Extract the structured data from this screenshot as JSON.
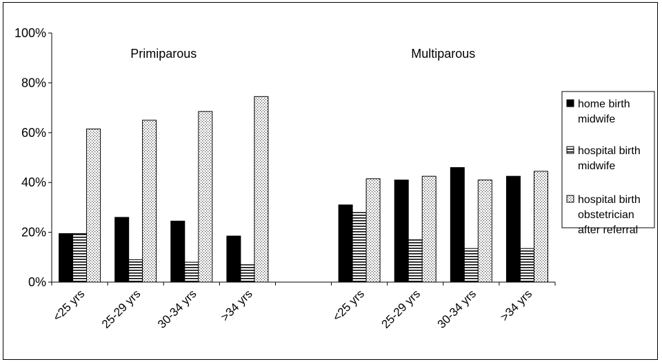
{
  "chart_data": {
    "type": "bar",
    "groups": [
      {
        "label": "Primiparous",
        "categories": [
          "<25 yrs",
          "25-29 yrs",
          "30-34 yrs",
          ">34 yrs"
        ]
      },
      {
        "label": "Multiparous",
        "categories": [
          "<25 yrs",
          "25-29 yrs",
          "30-34 yrs",
          ">34 yrs"
        ]
      }
    ],
    "series": [
      {
        "name_lines": [
          "home birth",
          "midwife"
        ],
        "pattern": "solid",
        "values": [
          [
            19.5,
            26,
            24.5,
            18.5
          ],
          [
            31,
            41,
            46,
            42.5
          ]
        ]
      },
      {
        "name_lines": [
          "hospital birth",
          "midwife"
        ],
        "pattern": "horizontal-lines",
        "values": [
          [
            19.5,
            9,
            8,
            7
          ],
          [
            28,
            17,
            13.5,
            13.5
          ]
        ]
      },
      {
        "name_lines": [
          "hospital birth",
          "obstetrician",
          "after referral"
        ],
        "pattern": "dots",
        "values": [
          [
            61.5,
            65,
            68.5,
            74.5
          ],
          [
            41.5,
            42.5,
            41,
            44.5
          ]
        ]
      }
    ],
    "ylim": [
      0,
      100
    ],
    "yticks": [
      "0%",
      "20%",
      "40%",
      "60%",
      "80%",
      "100%"
    ],
    "grid": false,
    "legend_position": "right"
  }
}
